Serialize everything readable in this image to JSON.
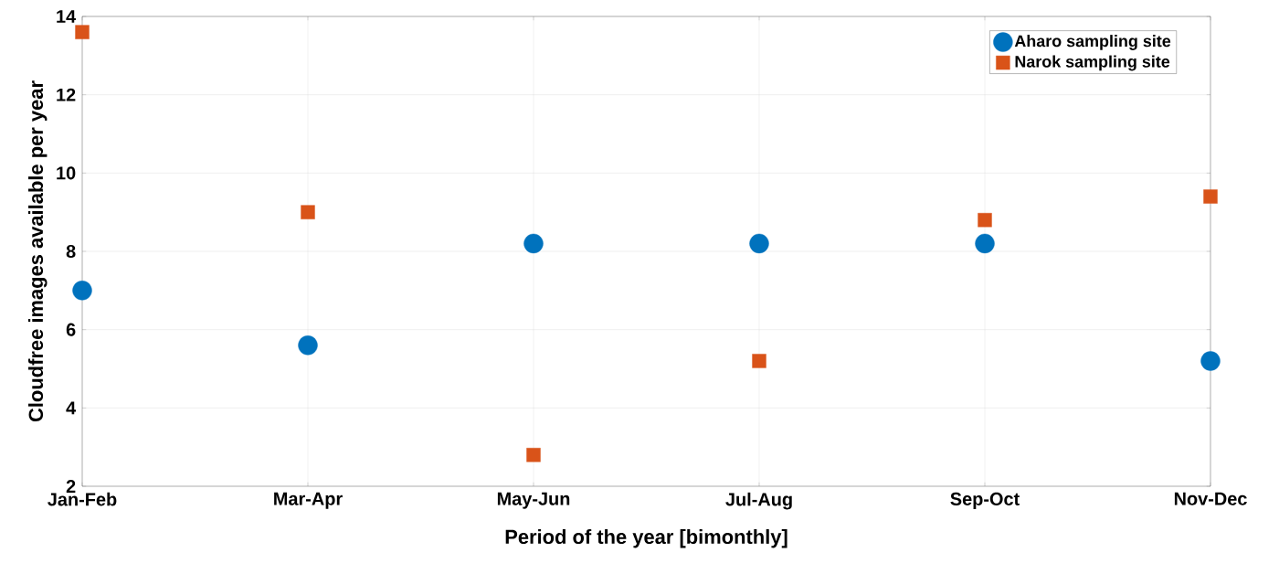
{
  "chart_data": {
    "type": "scatter",
    "xlabel": "Period of the year [bimonthly]",
    "ylabel": "Cloudfree images available per year",
    "categories": [
      "Jan-Feb",
      "Mar-Apr",
      "May-Jun",
      "Jul-Aug",
      "Sep-Oct",
      "Nov-Dec"
    ],
    "series": [
      {
        "name": "Aharo sampling site",
        "color": "#0072bd",
        "marker": "circle",
        "values": [
          7.0,
          5.6,
          8.2,
          8.2,
          8.2,
          5.2
        ]
      },
      {
        "name": "Narok sampling site",
        "color": "#d95319",
        "marker": "square",
        "values": [
          13.6,
          9.0,
          2.8,
          5.2,
          8.8,
          9.4
        ]
      }
    ],
    "ylim": [
      2,
      14
    ],
    "yticks": [
      2,
      4,
      6,
      8,
      10,
      12,
      14
    ],
    "grid": true,
    "legend": "top right"
  }
}
